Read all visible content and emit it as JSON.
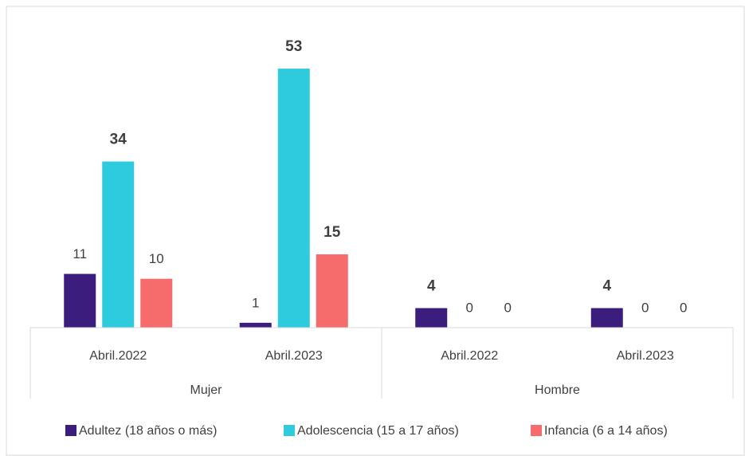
{
  "chart_data": {
    "type": "bar",
    "categories": [
      "Abril.2022",
      "Abril.2023",
      "Abril.2022",
      "Abril.2023"
    ],
    "groups": [
      {
        "name": "Mujer",
        "span": 2
      },
      {
        "name": "Hombre",
        "span": 2
      }
    ],
    "series": [
      {
        "name": "Adultez (18 años o más)",
        "color": "#3b1d7e",
        "values": [
          11,
          1,
          4,
          4
        ],
        "bold": [
          false,
          false,
          true,
          true
        ]
      },
      {
        "name": "Adolescencia (15 a 17 años)",
        "color": "#2ecbdf",
        "values": [
          34,
          53,
          0,
          0
        ],
        "bold": [
          true,
          true,
          false,
          false
        ]
      },
      {
        "name": "Infancia (6 a 14 años)",
        "color": "#f66b6b",
        "values": [
          10,
          15,
          0,
          0
        ],
        "bold": [
          false,
          true,
          false,
          false
        ]
      }
    ],
    "legend": "bottom"
  }
}
